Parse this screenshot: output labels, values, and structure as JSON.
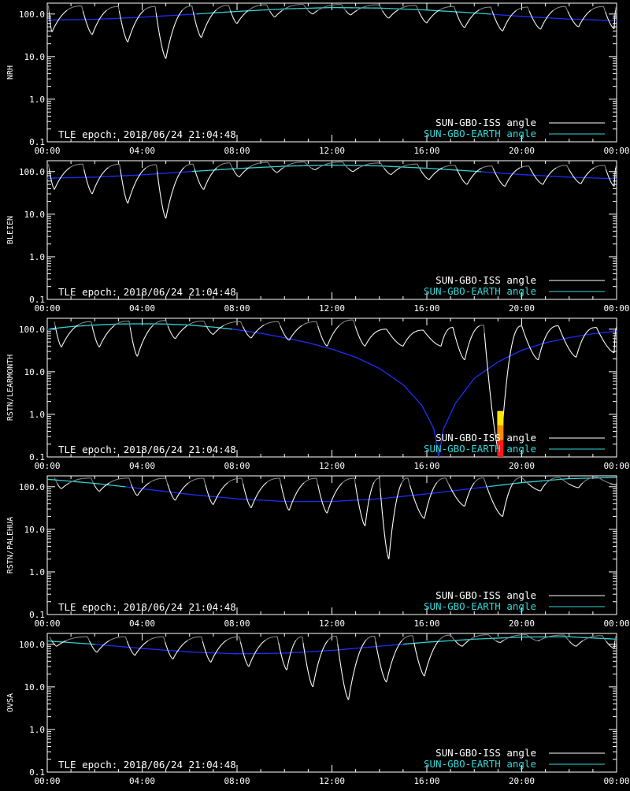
{
  "colors": {
    "background": "#000000",
    "axes": "#ffffff",
    "iss_curve": "#ffffff",
    "earth_curve_ground": "#1f2fff",
    "earth_curve_sky": "#33d6d6",
    "legend_earth_text": "#33d6d6",
    "marker_yellow": "#ffe600",
    "marker_orange": "#ff8c00",
    "marker_red": "#ff1a1a"
  },
  "epoch_text": "TLE epoch: 2018/06/24 21:04:48",
  "legend": {
    "iss_label": "SUN-GBO-ISS angle",
    "earth_label": "SUN-GBO-EARTH angle"
  },
  "chart_data": [
    {
      "type": "line",
      "ylabel": "NRH",
      "yscale": "log",
      "ylim": [
        0.1,
        180
      ],
      "xlim": [
        0,
        24
      ],
      "xticks": [
        "00:00",
        "04:00",
        "08:00",
        "12:00",
        "16:00",
        "20:00",
        "00:00"
      ],
      "yticks": [
        "0.1",
        "1.0",
        "10.0",
        "100.0"
      ],
      "series": [
        {
          "key": "earth",
          "x": [
            0,
            2,
            4,
            6,
            8,
            10,
            12,
            14,
            16,
            18,
            20,
            22,
            24
          ],
          "values": [
            72,
            75,
            84,
            98,
            115,
            132,
            142,
            138,
            124,
            106,
            88,
            76,
            70
          ]
        },
        {
          "key": "iss",
          "dips_x": [
            0.2,
            1.9,
            3.4,
            5.0,
            6.5,
            8.0,
            9.6,
            11.2,
            12.8,
            14.4,
            16.0,
            17.6,
            19.2,
            20.8,
            22.4,
            23.9
          ],
          "dips_min": [
            38,
            33,
            22,
            9,
            28,
            60,
            85,
            100,
            95,
            80,
            62,
            48,
            40,
            44,
            50,
            45
          ],
          "peaks_x": [
            0.05,
            1.45,
            3.0,
            4.55,
            6.1,
            7.65,
            9.25,
            10.8,
            12.4,
            14.0,
            15.55,
            17.15,
            18.7,
            20.25,
            21.85,
            23.45
          ],
          "peaks_max": [
            160,
            155,
            150,
            150,
            155,
            160,
            165,
            168,
            168,
            165,
            160,
            150,
            145,
            145,
            150,
            150
          ]
        }
      ]
    },
    {
      "type": "line",
      "ylabel": "BLEIEN",
      "yscale": "log",
      "ylim": [
        0.1,
        180
      ],
      "xlim": [
        0,
        24
      ],
      "xticks": [
        "00:00",
        "04:00",
        "08:00",
        "12:00",
        "16:00",
        "20:00",
        "00:00"
      ],
      "yticks": [
        "0.1",
        "1.0",
        "10.0",
        "100.0"
      ],
      "series": [
        {
          "key": "earth",
          "x": [
            0,
            2,
            4,
            6,
            8,
            10,
            12,
            14,
            16,
            18,
            20,
            22,
            24
          ],
          "values": [
            70,
            74,
            84,
            100,
            118,
            134,
            142,
            136,
            120,
            102,
            85,
            74,
            68
          ]
        },
        {
          "key": "iss",
          "dips_x": [
            0.3,
            1.9,
            3.4,
            5.0,
            6.6,
            8.1,
            9.7,
            11.3,
            12.9,
            14.5,
            16.1,
            17.7,
            19.3,
            20.9,
            22.5,
            23.9
          ],
          "dips_min": [
            38,
            30,
            18,
            8,
            38,
            75,
            95,
            110,
            100,
            85,
            65,
            50,
            45,
            50,
            52,
            45
          ],
          "peaks_x": [
            0.05,
            1.5,
            3.05,
            4.6,
            6.15,
            7.7,
            9.3,
            10.85,
            12.45,
            14.05,
            15.6,
            17.2,
            18.75,
            20.3,
            21.9,
            23.5
          ],
          "peaks_max": [
            150,
            150,
            148,
            145,
            150,
            160,
            165,
            168,
            168,
            160,
            150,
            140,
            135,
            135,
            140,
            140
          ]
        }
      ]
    },
    {
      "type": "line",
      "ylabel": "RSTN/LEARMONTH",
      "yscale": "log",
      "ylim": [
        0.1,
        180
      ],
      "xlim": [
        0,
        24
      ],
      "xticks": [
        "00:00",
        "04:00",
        "08:00",
        "12:00",
        "16:00",
        "20:00",
        "00:00"
      ],
      "yticks": [
        "0.1",
        "1.0",
        "10.0",
        "100.0"
      ],
      "series": [
        {
          "key": "earth",
          "x": [
            0,
            1,
            2,
            3,
            4,
            5,
            6,
            7,
            8,
            9,
            10,
            11,
            12,
            13,
            14,
            15,
            15.8,
            16.3,
            16.5,
            16.7,
            17.2,
            18,
            19,
            20,
            21,
            22,
            23,
            24
          ],
          "values": [
            100,
            115,
            125,
            132,
            134,
            132,
            125,
            112,
            97,
            80,
            63,
            48,
            34,
            22,
            12,
            5,
            1.6,
            0.45,
            0.1,
            0.45,
            1.8,
            7,
            17,
            32,
            48,
            63,
            78,
            90
          ]
        },
        {
          "key": "iss",
          "dips_x": [
            0.6,
            2.2,
            3.8,
            5.4,
            7.0,
            8.6,
            10.2,
            11.8,
            13.4,
            15.0,
            16.6,
            17.6,
            19.1,
            20.7,
            22.3,
            23.9
          ],
          "dips_min": [
            38,
            38,
            23,
            60,
            75,
            62,
            55,
            40,
            40,
            40,
            40,
            19,
            0.1,
            19,
            22,
            28
          ],
          "peaks_x": [
            0.3,
            1.85,
            3.45,
            5.0,
            6.6,
            8.15,
            9.75,
            11.35,
            12.9,
            14.3,
            15.85,
            17.1,
            18.4,
            20.0,
            21.55,
            23.15
          ],
          "peaks_max": [
            150,
            150,
            155,
            160,
            155,
            150,
            150,
            150,
            165,
            100,
            95,
            110,
            125,
            120,
            120,
            110
          ]
        },
        {
          "key": "marker",
          "x": 19.1,
          "segments": [
            {
              "from": 0.55,
              "to": 1.2,
              "color": "yellow"
            },
            {
              "from": 0.25,
              "to": 0.55,
              "color": "orange"
            },
            {
              "from": 0.1,
              "to": 0.25,
              "color": "red"
            }
          ]
        }
      ]
    },
    {
      "type": "line",
      "ylabel": "RSTN/PALEHUA",
      "yscale": "log",
      "ylim": [
        0.1,
        180
      ],
      "xlim": [
        0,
        24
      ],
      "xticks": [
        "00:00",
        "04:00",
        "08:00",
        "12:00",
        "16:00",
        "20:00",
        "00:00"
      ],
      "yticks": [
        "0.1",
        "1.0",
        "10.0",
        "100.0"
      ],
      "series": [
        {
          "key": "earth",
          "x": [
            0,
            2,
            4,
            6,
            8,
            10,
            12,
            14,
            16,
            18,
            20,
            22,
            24
          ],
          "values": [
            150,
            120,
            90,
            66,
            52,
            45,
            45,
            52,
            68,
            92,
            125,
            155,
            165
          ]
        },
        {
          "key": "iss",
          "dips_x": [
            0.6,
            2.2,
            3.8,
            5.4,
            7.0,
            8.6,
            10.2,
            11.8,
            13.4,
            14.4,
            15.9,
            17.6,
            19.2,
            20.8,
            22.4,
            24.0
          ],
          "dips_min": [
            90,
            78,
            62,
            48,
            38,
            32,
            28,
            24,
            12,
            2,
            18,
            35,
            20,
            80,
            95,
            110
          ],
          "peaks_x": [
            0.3,
            1.85,
            3.45,
            5.0,
            6.6,
            8.2,
            9.8,
            11.35,
            12.95,
            14.0,
            15.2,
            16.8,
            18.4,
            20.0,
            21.6,
            23.2
          ],
          "peaks_max": [
            165,
            160,
            160,
            158,
            158,
            158,
            158,
            158,
            158,
            158,
            160,
            160,
            162,
            165,
            165,
            168
          ]
        }
      ]
    },
    {
      "type": "line",
      "ylabel": "OVSA",
      "yscale": "log",
      "ylim": [
        0.1,
        180
      ],
      "xlim": [
        0,
        24
      ],
      "xticks": [
        "00:00",
        "04:00",
        "08:00",
        "12:00",
        "16:00",
        "20:00",
        "00:00"
      ],
      "yticks": [
        "0.1",
        "1.0",
        "10.0",
        "100.0"
      ],
      "series": [
        {
          "key": "earth",
          "x": [
            0,
            2,
            4,
            6,
            8,
            10,
            12,
            14,
            16,
            18,
            20,
            22,
            24
          ],
          "values": [
            120,
            100,
            80,
            66,
            60,
            62,
            72,
            90,
            112,
            132,
            148,
            150,
            132
          ]
        },
        {
          "key": "iss",
          "dips_x": [
            0.4,
            2.1,
            3.7,
            5.3,
            6.9,
            8.5,
            10.1,
            11.2,
            12.7,
            14.3,
            15.9,
            17.5,
            19.1,
            20.7,
            22.3,
            23.9
          ],
          "dips_min": [
            90,
            65,
            55,
            45,
            38,
            30,
            25,
            10,
            5,
            13,
            18,
            90,
            110,
            120,
            90,
            80
          ],
          "peaks_x": [
            0.1,
            1.7,
            3.3,
            4.9,
            6.5,
            8.1,
            9.7,
            10.75,
            12.2,
            13.8,
            15.4,
            17.0,
            18.6,
            20.2,
            21.8,
            23.4
          ],
          "peaks_max": [
            150,
            150,
            150,
            150,
            150,
            150,
            150,
            150,
            155,
            155,
            160,
            165,
            168,
            168,
            165,
            160
          ]
        }
      ]
    }
  ]
}
